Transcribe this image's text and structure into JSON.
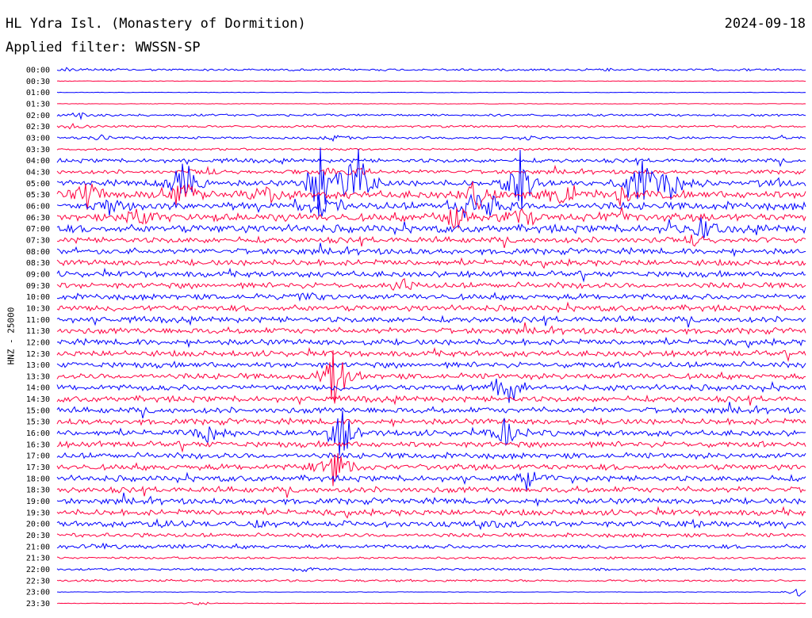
{
  "header": {
    "title": "HL Ydra Isl. (Monastery of Dormition)",
    "date": "2024-09-18",
    "filter_label": "Applied filter: WWSSN-SP"
  },
  "chart_data": {
    "type": "line",
    "title": "HL Ydra Isl. (Monastery of Dormition)",
    "ylabel": "HNZ - 25000",
    "colors": [
      "#0000ff",
      "#ff0040"
    ],
    "trace_labels": [
      "00:00",
      "00:30",
      "01:00",
      "01:30",
      "02:00",
      "02:30",
      "03:00",
      "03:30",
      "04:00",
      "04:30",
      "05:00",
      "05:30",
      "06:00",
      "06:30",
      "07:00",
      "07:30",
      "08:00",
      "08:30",
      "09:00",
      "09:30",
      "10:00",
      "10:30",
      "11:00",
      "11:30",
      "12:00",
      "12:30",
      "13:00",
      "13:30",
      "14:00",
      "14:30",
      "15:00",
      "15:30",
      "16:00",
      "16:30",
      "17:00",
      "17:30",
      "18:00",
      "18:30",
      "19:00",
      "19:30",
      "20:00",
      "20:30",
      "21:00",
      "21:30",
      "22:00",
      "22:30",
      "23:00",
      "23:30"
    ],
    "noise_level": [
      1,
      0,
      0,
      0,
      1,
      1,
      1,
      1,
      2,
      2,
      3,
      4,
      4,
      4,
      4,
      3,
      3,
      3,
      3,
      3,
      3,
      3,
      3,
      3,
      3,
      3,
      3,
      3,
      3,
      3,
      3,
      3,
      3,
      3,
      3,
      3,
      3,
      3,
      3,
      3,
      3,
      2,
      2,
      1,
      1,
      1,
      0,
      0
    ],
    "bursts": [
      {
        "trace": 0,
        "x": 0.01,
        "amp": 3
      },
      {
        "trace": 0,
        "x": 0.74,
        "amp": 2
      },
      {
        "trace": 4,
        "x": 0.03,
        "amp": 5
      },
      {
        "trace": 5,
        "x": 0.02,
        "amp": 3
      },
      {
        "trace": 6,
        "x": 0.06,
        "amp": 4
      },
      {
        "trace": 6,
        "x": 0.37,
        "amp": 4
      },
      {
        "trace": 6,
        "x": 0.63,
        "amp": 4
      },
      {
        "trace": 6,
        "x": 0.97,
        "amp": 4
      },
      {
        "trace": 9,
        "x": 0.2,
        "amp": 8
      },
      {
        "trace": 9,
        "x": 0.36,
        "amp": 8
      },
      {
        "trace": 9,
        "x": 0.4,
        "amp": 8
      },
      {
        "trace": 10,
        "x": 0.17,
        "amp": 55
      },
      {
        "trace": 10,
        "x": 0.35,
        "amp": 75
      },
      {
        "trace": 10,
        "x": 0.4,
        "amp": 70
      },
      {
        "trace": 10,
        "x": 0.62,
        "amp": 55
      },
      {
        "trace": 10,
        "x": 0.78,
        "amp": 45
      },
      {
        "trace": 10,
        "x": 0.82,
        "amp": 25
      },
      {
        "trace": 10,
        "x": 0.96,
        "amp": 10
      },
      {
        "trace": 11,
        "x": 0.04,
        "amp": 20
      },
      {
        "trace": 11,
        "x": 0.17,
        "amp": 30
      },
      {
        "trace": 11,
        "x": 0.28,
        "amp": 12
      },
      {
        "trace": 11,
        "x": 0.56,
        "amp": 35
      },
      {
        "trace": 11,
        "x": 0.67,
        "amp": 25
      },
      {
        "trace": 11,
        "x": 0.75,
        "amp": 20
      },
      {
        "trace": 12,
        "x": 0.07,
        "amp": 12
      },
      {
        "trace": 12,
        "x": 0.35,
        "amp": 20
      },
      {
        "trace": 12,
        "x": 0.55,
        "amp": 25
      },
      {
        "trace": 12,
        "x": 0.58,
        "amp": 20
      },
      {
        "trace": 13,
        "x": 0.11,
        "amp": 12
      },
      {
        "trace": 13,
        "x": 0.53,
        "amp": 20
      },
      {
        "trace": 13,
        "x": 0.62,
        "amp": 30
      },
      {
        "trace": 13,
        "x": 0.75,
        "amp": 15
      },
      {
        "trace": 14,
        "x": 0.86,
        "amp": 20
      },
      {
        "trace": 15,
        "x": 0.85,
        "amp": 10
      },
      {
        "trace": 19,
        "x": 0.46,
        "amp": 8
      },
      {
        "trace": 20,
        "x": 0.33,
        "amp": 8
      },
      {
        "trace": 27,
        "x": 0.37,
        "amp": 60
      },
      {
        "trace": 28,
        "x": 0.6,
        "amp": 40
      },
      {
        "trace": 32,
        "x": 0.2,
        "amp": 15
      },
      {
        "trace": 32,
        "x": 0.38,
        "amp": 45
      },
      {
        "trace": 32,
        "x": 0.6,
        "amp": 25
      },
      {
        "trace": 35,
        "x": 0.37,
        "amp": 35
      },
      {
        "trace": 36,
        "x": 0.63,
        "amp": 15
      },
      {
        "trace": 40,
        "x": 0.14,
        "amp": 5
      },
      {
        "trace": 40,
        "x": 0.27,
        "amp": 5
      },
      {
        "trace": 40,
        "x": 0.6,
        "amp": 6
      },
      {
        "trace": 40,
        "x": 0.86,
        "amp": 5
      },
      {
        "trace": 42,
        "x": 0.06,
        "amp": 4
      },
      {
        "trace": 44,
        "x": 0.33,
        "amp": 4
      },
      {
        "trace": 46,
        "x": 0.99,
        "amp": 7
      },
      {
        "trace": 47,
        "x": 0.19,
        "amp": 4
      }
    ]
  }
}
